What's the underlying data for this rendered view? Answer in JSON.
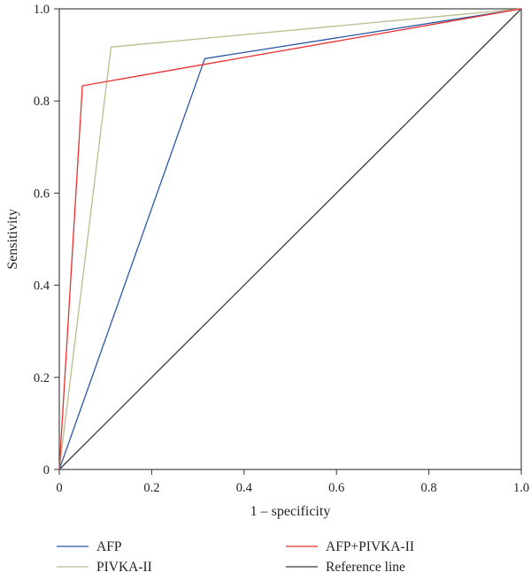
{
  "chart_data": {
    "type": "line",
    "title": "",
    "xlabel": "1 – specificity",
    "ylabel": "Sensitivity",
    "xlim": [
      0,
      1
    ],
    "ylim": [
      0,
      1
    ],
    "x_ticks": [
      0,
      0.2,
      0.4,
      0.6,
      0.8,
      1.0
    ],
    "x_tick_labels": [
      "0",
      "0.2",
      "0.4",
      "0.6",
      "0.8",
      "1.0"
    ],
    "y_ticks": [
      0,
      0.2,
      0.4,
      0.6,
      0.8,
      1.0
    ],
    "y_tick_labels": [
      "0",
      "0.2",
      "0.4",
      "0.6",
      "0.8",
      "1.0"
    ],
    "grid": false,
    "legend_position": "bottom",
    "series": [
      {
        "name": "AFP",
        "color": "#2a57a6",
        "points": [
          [
            0,
            0
          ],
          [
            0.315,
            0.892
          ],
          [
            1,
            1
          ]
        ]
      },
      {
        "name": "PIVKA-II",
        "color": "#b8bd8e",
        "points": [
          [
            0,
            0
          ],
          [
            0.112,
            0.917
          ],
          [
            1,
            1
          ]
        ]
      },
      {
        "name": "AFP+PIVKA-II",
        "color": "#e8302f",
        "points": [
          [
            0,
            0
          ],
          [
            0.05,
            0.833
          ],
          [
            1,
            1
          ]
        ]
      },
      {
        "name": "Reference line",
        "color": "#3a3a3a",
        "points": [
          [
            0,
            0
          ],
          [
            1,
            1
          ]
        ]
      }
    ]
  }
}
